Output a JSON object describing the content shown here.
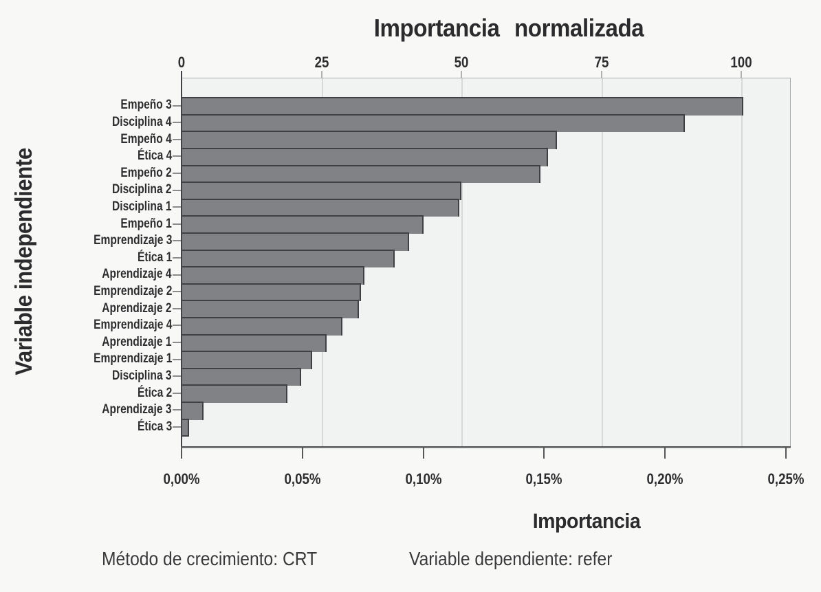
{
  "title": "Importancia normalizada",
  "ylabel": "Variable independiente",
  "xlabel": "Importancia",
  "footer": {
    "left": "Método de crecimiento: CRT",
    "right": "Variable dependiente: refer"
  },
  "colors": {
    "bar_fill": "#808286",
    "bar_border": "#3f4044",
    "plot_background": "#f1f3f2",
    "page_background": "#f8f8f6",
    "gridline": "#d7d9d8",
    "axis_line": "#414246",
    "text": "#2e2e30"
  },
  "chart_data": {
    "type": "bar",
    "orientation": "horizontal",
    "title": "Importancia normalizada",
    "top_axis_label": "Importancia normalizada",
    "bottom_axis_label": "Importancia",
    "ylabel": "Variable independiente",
    "top_axis_ticks": [
      0,
      25,
      50,
      75,
      100
    ],
    "top_axis_range": [
      0,
      108.6
    ],
    "bottom_axis_tick_labels": [
      "0,00%",
      "0,05%",
      "0,10%",
      "0,15%",
      "0,20%",
      "0,25%"
    ],
    "bottom_axis_range_pct": [
      0.0,
      0.25
    ],
    "grid": "vertical gridlines at 25, 50, 75, 100",
    "legend": false,
    "categories": [
      "Empeño 3",
      "Disciplina 4",
      "Empeño 4",
      "Ética 4",
      "Empeño 2",
      "Disciplina 2",
      "Disciplina 1",
      "Empeño 1",
      "Emprendizaje 3",
      "Ética 1",
      "Aprendizaje 4",
      "Emprendizaje 2",
      "Aprendizaje 2",
      "Emprendizaje 4",
      "Aprendizaje 1",
      "Emprendizaje 1",
      "Disciplina 3",
      "Ética 2",
      "Aprendizaje 3",
      "Ética 3"
    ],
    "values_normalized": [
      100,
      89.6,
      66.7,
      65.1,
      63.8,
      49.6,
      49.3,
      42.9,
      40.3,
      37.7,
      32.3,
      31.7,
      31.3,
      28.4,
      25.6,
      23.0,
      21.0,
      18.6,
      3.6,
      1.0
    ],
    "values_importancia_pct_est": [
      0.232,
      0.208,
      0.155,
      0.151,
      0.148,
      0.115,
      0.115,
      0.1,
      0.094,
      0.088,
      0.075,
      0.074,
      0.073,
      0.066,
      0.059,
      0.053,
      0.049,
      0.043,
      0.008,
      0.002
    ],
    "footnotes": [
      "Método de crecimiento: CRT",
      "Variable dependiente: refer"
    ]
  }
}
